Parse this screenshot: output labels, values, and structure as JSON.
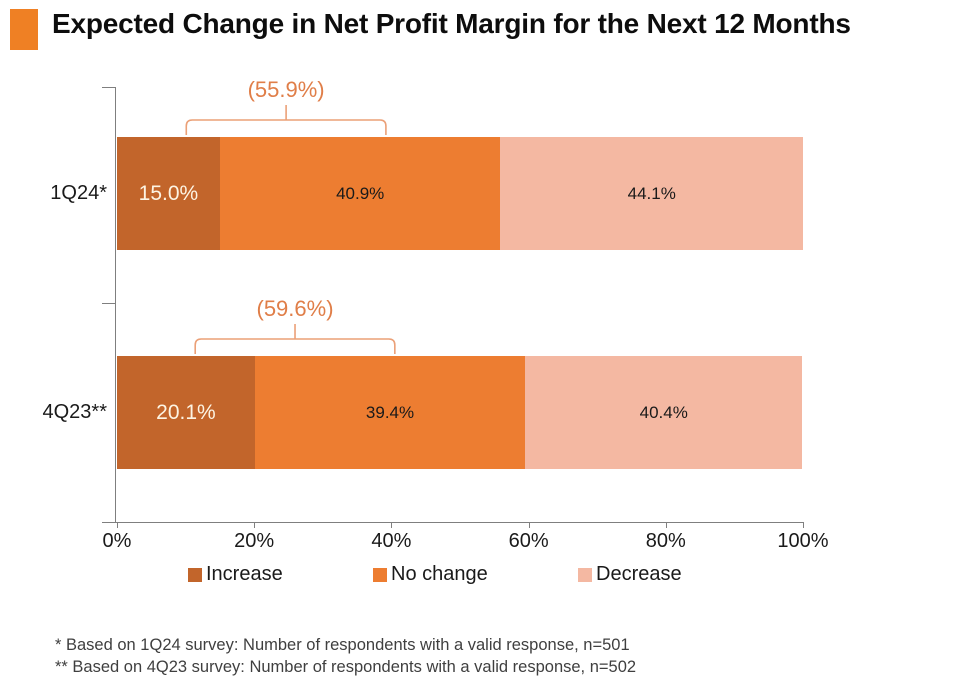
{
  "title": {
    "text": "Expected Change in Net Profit Margin for the Next 12 Months",
    "marker_color": "#ef8024"
  },
  "chart_data": {
    "type": "bar",
    "orientation": "horizontal",
    "stacked": true,
    "title": "Expected Change in Net Profit Margin for the Next 12 Months",
    "categories": [
      "1Q24*",
      "4Q23**"
    ],
    "series": [
      {
        "name": "Increase",
        "color": "#c2652b",
        "label_color": "#fdf4e3",
        "values": [
          15.0,
          20.1
        ],
        "labels": [
          "15.0%",
          "20.1%"
        ]
      },
      {
        "name": "No change",
        "color": "#ed7d31",
        "label_color": "#1a1a1a",
        "values": [
          40.9,
          39.4
        ],
        "labels": [
          "40.9%",
          "39.4%"
        ]
      },
      {
        "name": "Decrease",
        "color": "#f4b8a2",
        "label_color": "#1a1a1a",
        "values": [
          44.1,
          40.4
        ],
        "labels": [
          "44.1%",
          "40.4%"
        ]
      }
    ],
    "annotations": [
      {
        "row": 0,
        "label": "(55.9%)",
        "meaning": "Increase + No change",
        "from_pct": 10.1,
        "to_pct": 39.2
      },
      {
        "row": 1,
        "label": "(59.6%)",
        "meaning": "Increase + No change",
        "from_pct": 11.4,
        "to_pct": 40.5
      }
    ],
    "x_ticks": [
      {
        "value": 0,
        "label": "0%"
      },
      {
        "value": 20,
        "label": "20%"
      },
      {
        "value": 40,
        "label": "40%"
      },
      {
        "value": 60,
        "label": "60%"
      },
      {
        "value": 80,
        "label": "80%"
      },
      {
        "value": 100,
        "label": "100%"
      }
    ],
    "xlim": [
      0,
      100
    ],
    "grid": false,
    "legend_position": "bottom",
    "legend": [
      {
        "label": "Increase",
        "color": "#c2652b"
      },
      {
        "label": "No change",
        "color": "#ed7d31"
      },
      {
        "label": "Decrease",
        "color": "#f4b8a2"
      }
    ],
    "annotation_text_color": "#e07e48",
    "brace_line_color": "#eba077",
    "axis_color": "#7f7f7f"
  },
  "footnotes": [
    "* Based on 1Q24 survey: Number of respondents with a valid response, n=501",
    "** Based on 4Q23 survey: Number of respondents with a valid response, n=502"
  ]
}
